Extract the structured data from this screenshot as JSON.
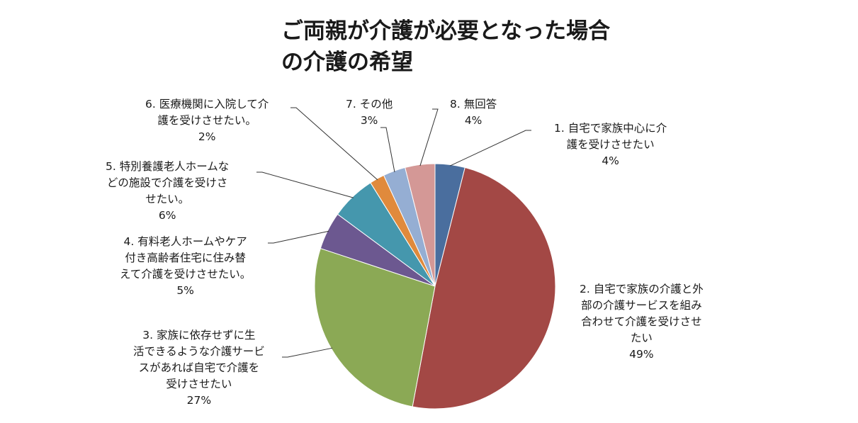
{
  "chart_data": {
    "type": "pie",
    "title_lines": [
      "ご両親が介護が必要となった場合",
      "の介護の希望"
    ],
    "slices": [
      {
        "label_lines": [
          "1. 自宅で家族中心に介",
          "護を受けさせたい"
        ],
        "value": 4,
        "value_label": "4%",
        "color": "#4a6e9e"
      },
      {
        "label_lines": [
          "2. 自宅で家族の介護と外",
          "部の介護サービスを組み",
          "合わせて介護を受けさせ",
          "たい"
        ],
        "value": 49,
        "value_label": "49%",
        "color": "#a34845"
      },
      {
        "label_lines": [
          "3. 家族に依存せずに生",
          "活できるような介護サービ",
          "スがあれば自宅で介護を",
          "受けさせたい"
        ],
        "value": 27,
        "value_label": "27%",
        "color": "#8ba955"
      },
      {
        "label_lines": [
          "4. 有料老人ホームやケア",
          "付き高齢者住宅に住み替",
          "えて介護を受けさせたい。"
        ],
        "value": 5,
        "value_label": "5%",
        "color": "#6c5890"
      },
      {
        "label_lines": [
          "5. 特別養護老人ホームな",
          "どの施設で介護を受けさ",
          "せたい。"
        ],
        "value": 6,
        "value_label": "6%",
        "color": "#4597ad"
      },
      {
        "label_lines": [
          "6. 医療機関に入院して介",
          "護を受けさせたい。"
        ],
        "value": 2,
        "value_label": "2%",
        "color": "#e08a3c"
      },
      {
        "label_lines": [
          "7. その他"
        ],
        "value": 3,
        "value_label": "3%",
        "color": "#95aed3"
      },
      {
        "label_lines": [
          "8. 無回答"
        ],
        "value": 4,
        "value_label": "4%",
        "color": "#d49896"
      }
    ]
  }
}
